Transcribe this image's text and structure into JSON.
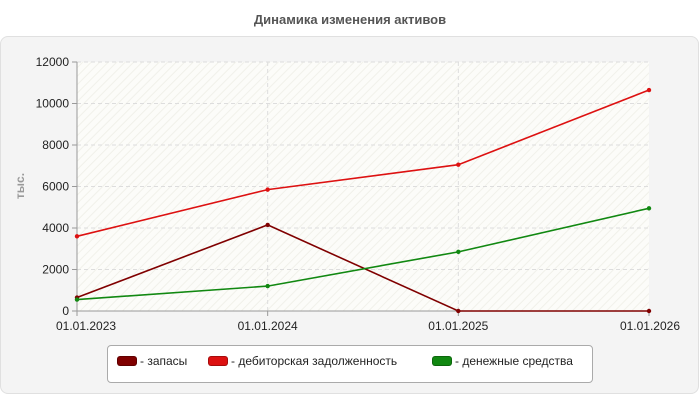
{
  "chart_data": {
    "type": "line",
    "title": "Динамика изменения активов",
    "ylabel": "тыс.",
    "xlabel": "",
    "categories": [
      "01.01.2023",
      "01.01.2024",
      "01.01.2025",
      "01.01.2026"
    ],
    "ylim": [
      0,
      12000
    ],
    "yticks": [
      0,
      2000,
      4000,
      6000,
      8000,
      10000,
      12000
    ],
    "grid": true,
    "legend_position": "bottom",
    "series": [
      {
        "name": "запасы",
        "color": "#800000",
        "values": [
          650,
          4150,
          0,
          0
        ]
      },
      {
        "name": "дебиторская задолженность",
        "color": "#dd1111",
        "values": [
          3600,
          5850,
          7050,
          10650
        ]
      },
      {
        "name": "денежные средства",
        "color": "#118811",
        "values": [
          550,
          1200,
          2850,
          4950
        ]
      }
    ]
  },
  "legend": {
    "items": [
      {
        "label": "- запасы",
        "color": "#800000"
      },
      {
        "label": "- дебиторская задолженность",
        "color": "#dd1111"
      },
      {
        "label": "- денежные средства",
        "color": "#118811"
      }
    ]
  }
}
